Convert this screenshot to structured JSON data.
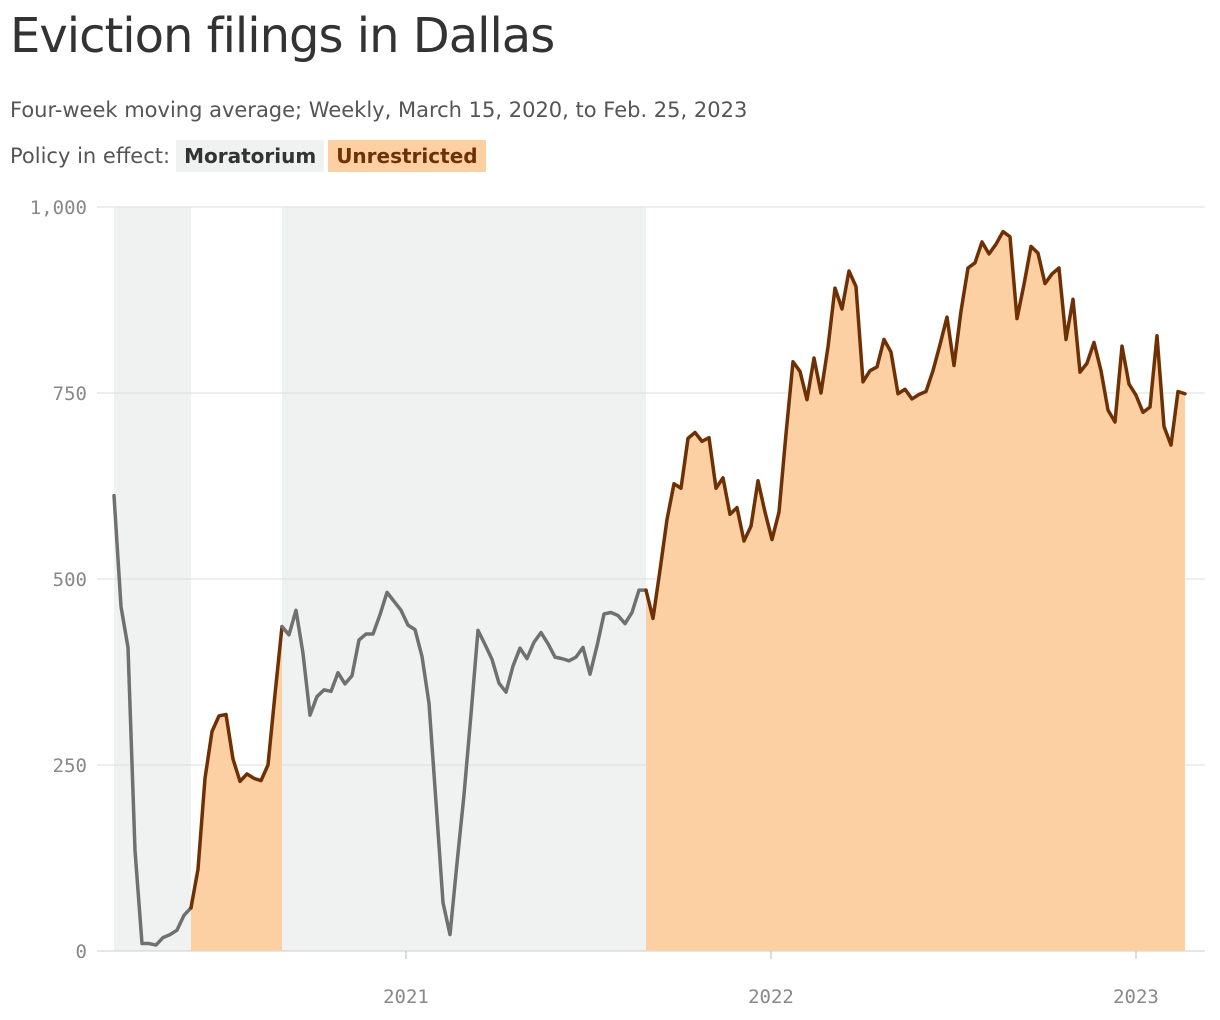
{
  "title": "Eviction filings in Dallas",
  "subtitle": "Four-week moving average; Weekly, March 15, 2020, to Feb. 25, 2023",
  "legend": {
    "label": "Policy in effect:",
    "moratorium": "Moratorium",
    "unrestricted": "Unrestricted"
  },
  "colors": {
    "moratorium_bg": "#f0f1f1",
    "moratorium_line": "#707070",
    "unrestricted_bg": "#fdd0a4",
    "unrestricted_line": "#6e3005",
    "grid": "#dddddd",
    "axis_text": "#888888"
  },
  "chart_data": {
    "type": "area",
    "title": "Eviction filings in Dallas",
    "subtitle": "Four-week moving average; Weekly, March 15, 2020, to Feb. 25, 2023",
    "xlabel": "",
    "ylabel": "",
    "ylim": [
      0,
      1000
    ],
    "y_ticks": [
      0,
      250,
      500,
      750,
      1000
    ],
    "y_tick_labels": [
      "0",
      "250",
      "500",
      "750",
      "1,000"
    ],
    "x_ticks": [
      "2021-01-01",
      "2022-01-01",
      "2023-01-01"
    ],
    "x_tick_labels": [
      "2021",
      "2022",
      "2023"
    ],
    "x_range": [
      "2020-03-15",
      "2023-02-25"
    ],
    "grid": true,
    "policy_periods": [
      {
        "policy": "Moratorium",
        "start": "2020-03-15",
        "end": "2020-05-31"
      },
      {
        "policy": "Unrestricted",
        "start": "2020-05-31",
        "end": "2020-08-30"
      },
      {
        "policy": "Moratorium",
        "start": "2020-08-30",
        "end": "2021-08-29"
      },
      {
        "policy": "Unrestricted",
        "start": "2021-08-29",
        "end": "2023-02-25"
      }
    ],
    "series": [
      {
        "name": "Eviction filings",
        "start": "2020-03-15",
        "interval_days": 7,
        "values": [
          612,
          463,
          408,
          135,
          10,
          10,
          8,
          18,
          22,
          28,
          48,
          58,
          110,
          232,
          295,
          316,
          318,
          258,
          228,
          238,
          232,
          229,
          250,
          345,
          436,
          425,
          458,
          400,
          317,
          342,
          351,
          349,
          374,
          359,
          370,
          418,
          426,
          426,
          452,
          482,
          470,
          458,
          438,
          432,
          396,
          333,
          200,
          65,
          22,
          118,
          210,
          318,
          431,
          412,
          392,
          360,
          348,
          383,
          407,
          393,
          415,
          428,
          413,
          395,
          393,
          390,
          395,
          408,
          372,
          410,
          453,
          455,
          451,
          440,
          455,
          485,
          485,
          447,
          512,
          580,
          628,
          622,
          689,
          697,
          685,
          690,
          622,
          636,
          587,
          596,
          551,
          571,
          632,
          590,
          553,
          590,
          695,
          792,
          779,
          741,
          797,
          750,
          812,
          891,
          863,
          914,
          893,
          765,
          780,
          785,
          822,
          805,
          749,
          755,
          742,
          748,
          752,
          780,
          815,
          852,
          787,
          860,
          918,
          925,
          953,
          937,
          950,
          967,
          960,
          850,
          896,
          947,
          938,
          897,
          910,
          918,
          822,
          876,
          778,
          790,
          818,
          780,
          727,
          711,
          813,
          762,
          747,
          724,
          731,
          827,
          705,
          680,
          752,
          749
        ]
      }
    ]
  }
}
